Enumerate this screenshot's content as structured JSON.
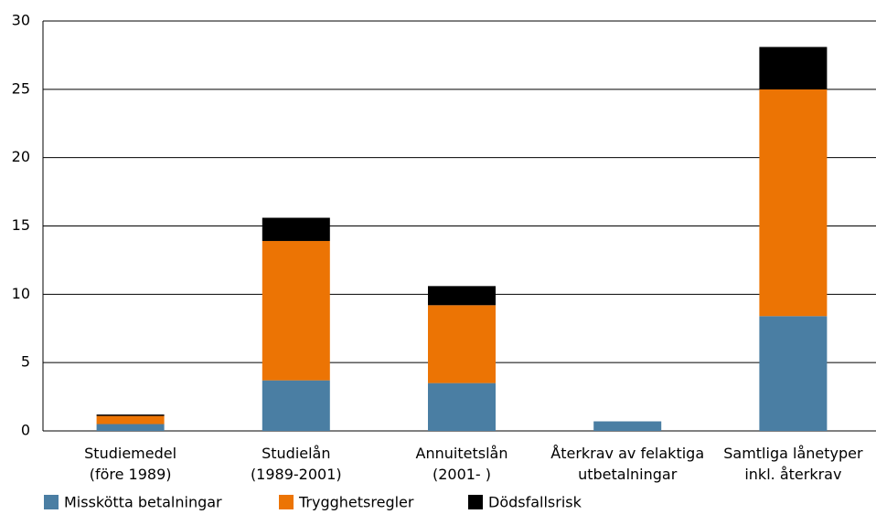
{
  "chart_data": {
    "type": "stacked_bar",
    "categories": [
      "Studiemedel\n(före 1989)",
      "Studielån\n(1989-2001)",
      "Annuitetslån\n(2001-   )",
      "Återkrav av felaktiga\nutbetalningar",
      "Samtliga lånetyper\ninkl. återkrav"
    ],
    "series": [
      {
        "name": "Misskötta betalningar",
        "color": "#4a7ea3",
        "values": [
          0.5,
          3.7,
          3.5,
          0.7,
          8.4
        ]
      },
      {
        "name": "Trygghetsregler",
        "color": "#ec7404",
        "values": [
          0.6,
          10.2,
          5.7,
          0,
          16.6
        ]
      },
      {
        "name": "Dödsfallsrisk",
        "color": "#000000",
        "values": [
          0.1,
          1.7,
          1.4,
          0,
          3.1
        ]
      }
    ],
    "ylim": [
      0,
      30
    ],
    "yticks": [
      0,
      5,
      10,
      15,
      20,
      25,
      30
    ],
    "grid": true,
    "legend": "bottom"
  }
}
